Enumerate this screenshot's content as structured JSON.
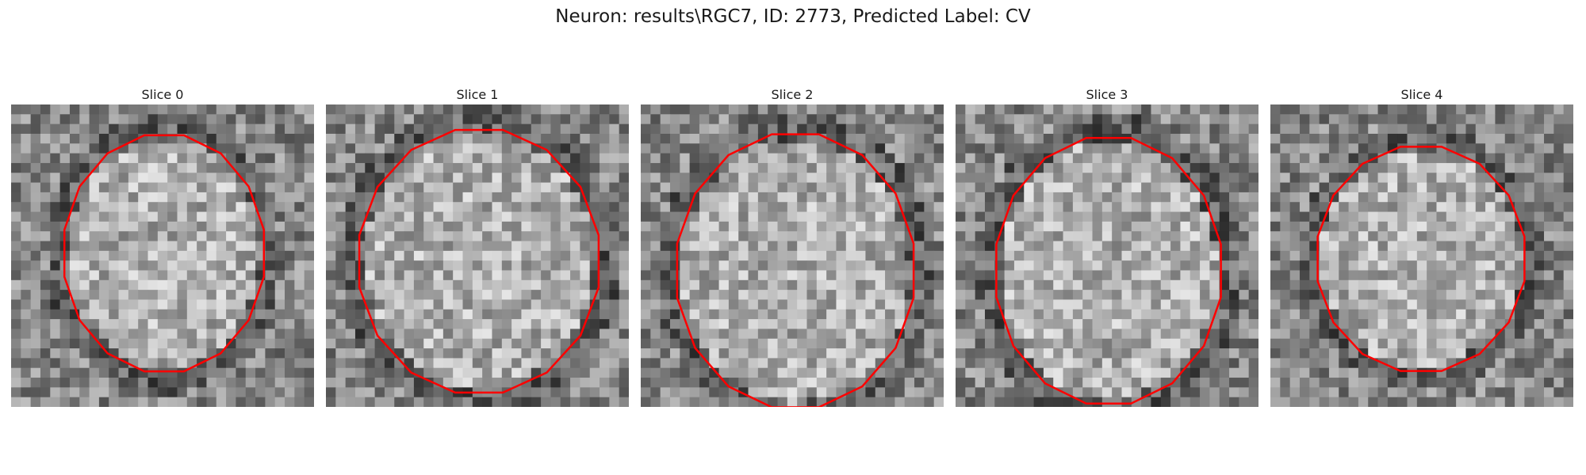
{
  "figure": {
    "title": "Neuron: results\\RGC7, ID: 2773, Predicted Label: CV"
  },
  "panels": [
    {
      "label": "Slice 0"
    },
    {
      "label": "Slice 1"
    },
    {
      "label": "Slice 2"
    },
    {
      "label": "Slice 3"
    },
    {
      "label": "Slice 4"
    }
  ],
  "colors": {
    "contour": "#ff0000",
    "background": "#ffffff"
  }
}
